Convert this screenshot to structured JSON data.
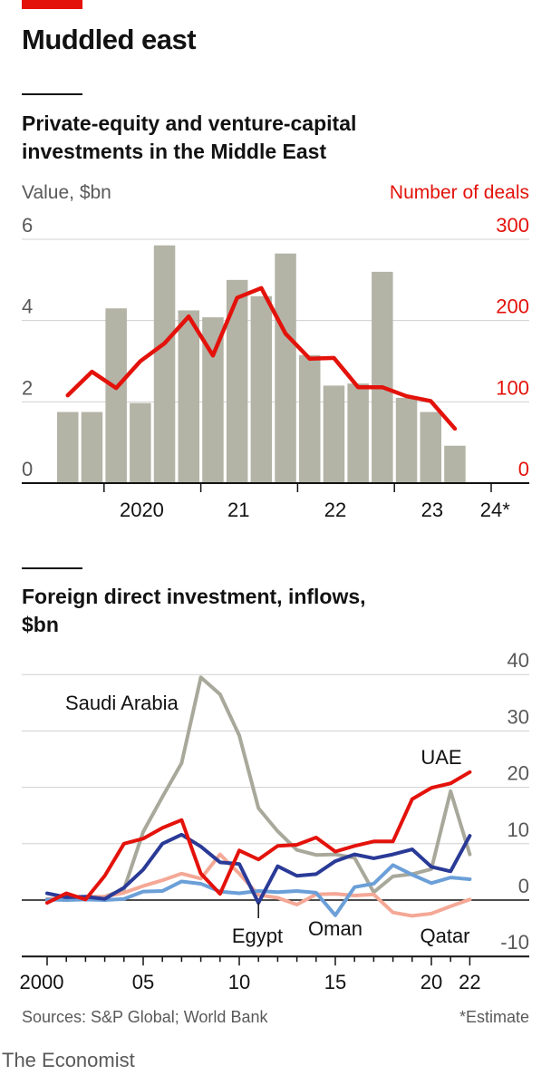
{
  "title": "Muddled east",
  "chart_data": [
    {
      "type": "bar+line",
      "subtitle": "Private-equity and venture-capital investments in the Middle East",
      "left_axis_label": "Value, $bn",
      "right_axis_label": "Number of deals",
      "left_ylim": [
        0,
        6
      ],
      "right_ylim": [
        0,
        300
      ],
      "left_ticks": [
        "0",
        "2",
        "4",
        "6"
      ],
      "right_ticks": [
        "0",
        "100",
        "200",
        "300"
      ],
      "x_ticks": [
        "2020",
        "21",
        "22",
        "23",
        "24*"
      ],
      "periods": [
        "2019 Q3",
        "2019 Q4",
        "2020 Q1",
        "2020 Q2",
        "2020 Q3",
        "2020 Q4",
        "2021 Q1",
        "2021 Q2",
        "2021 Q3",
        "2021 Q4",
        "2022 Q1",
        "2022 Q2",
        "2022 Q3",
        "2022 Q4",
        "2023 Q1",
        "2023 Q2",
        "2023 Q3",
        "2023 Q4",
        "2024 Q1"
      ],
      "series": [
        {
          "name": "Value, $bn",
          "kind": "bar",
          "color": "#b3b3a6",
          "values": [
            1.75,
            1.75,
            4.3,
            1.97,
            5.85,
            4.25,
            4.08,
            5.0,
            4.6,
            5.65,
            3.15,
            2.4,
            2.45,
            5.2,
            2.1,
            1.75,
            0.92,
            null,
            null
          ]
        },
        {
          "name": "Number of deals",
          "kind": "line",
          "color": "#e3120b",
          "values": [
            108,
            137,
            117,
            150,
            172,
            205,
            157,
            228,
            240,
            184,
            153,
            154,
            118,
            118,
            107,
            101,
            67,
            null,
            null
          ]
        }
      ],
      "grid": true
    },
    {
      "type": "line",
      "subtitle": "Foreign direct investment, inflows, $bn",
      "ylim": [
        -10,
        40
      ],
      "y_ticks": [
        "-10",
        "0",
        "10",
        "20",
        "30",
        "40"
      ],
      "x_ticks": [
        "2000",
        "05",
        "10",
        "15",
        "20",
        "22"
      ],
      "x": [
        2000,
        2001,
        2002,
        2003,
        2004,
        2005,
        2006,
        2007,
        2008,
        2009,
        2010,
        2011,
        2012,
        2013,
        2014,
        2015,
        2016,
        2017,
        2018,
        2019,
        2020,
        2021,
        2022
      ],
      "series": [
        {
          "name": "Saudi Arabia",
          "color": "#a8a89b",
          "values": [
            -0.2,
            0.5,
            0.2,
            0.6,
            1.9,
            12.1,
            18.3,
            24.3,
            39.5,
            36.5,
            29.2,
            16.3,
            12.2,
            8.9,
            8.0,
            8.1,
            7.5,
            1.4,
            4.2,
            4.6,
            5.5,
            19.3,
            8.1
          ]
        },
        {
          "name": "UAE",
          "color": "#e3120b",
          "values": [
            -0.5,
            1.2,
            0.1,
            4.3,
            10.0,
            10.9,
            12.8,
            14.2,
            4.7,
            1.1,
            8.8,
            7.2,
            9.6,
            9.8,
            11.1,
            8.6,
            9.6,
            10.4,
            10.4,
            17.9,
            19.9,
            20.7,
            22.7
          ]
        },
        {
          "name": "Egypt",
          "color": "#2a3a97",
          "values": [
            1.2,
            0.5,
            0.6,
            0.2,
            2.2,
            5.4,
            10.0,
            11.6,
            9.5,
            6.7,
            6.4,
            -0.5,
            6.0,
            4.3,
            4.6,
            6.9,
            8.1,
            7.4,
            8.1,
            9.0,
            5.9,
            5.1,
            11.4
          ]
        },
        {
          "name": "Oman",
          "color": "#6b9fd8",
          "values": [
            0.1,
            0.0,
            0.1,
            0.0,
            0.2,
            1.5,
            1.6,
            3.3,
            2.9,
            1.5,
            1.2,
            1.6,
            1.4,
            1.6,
            1.3,
            -2.7,
            2.3,
            2.9,
            6.2,
            4.5,
            3.0,
            4.0,
            3.7
          ]
        },
        {
          "name": "Qatar",
          "color": "#f4a896",
          "values": [
            0.2,
            0.3,
            0.6,
            0.6,
            1.3,
            2.5,
            3.5,
            4.7,
            3.8,
            8.1,
            4.7,
            0.9,
            0.4,
            -0.8,
            1.0,
            1.1,
            0.8,
            1.0,
            -2.2,
            -2.8,
            -2.4,
            -1.1,
            0.1
          ]
        }
      ],
      "grid": true
    }
  ],
  "sources": "Sources: S&P Global; World Bank",
  "footnote": "*Estimate",
  "brand": "The Economist"
}
